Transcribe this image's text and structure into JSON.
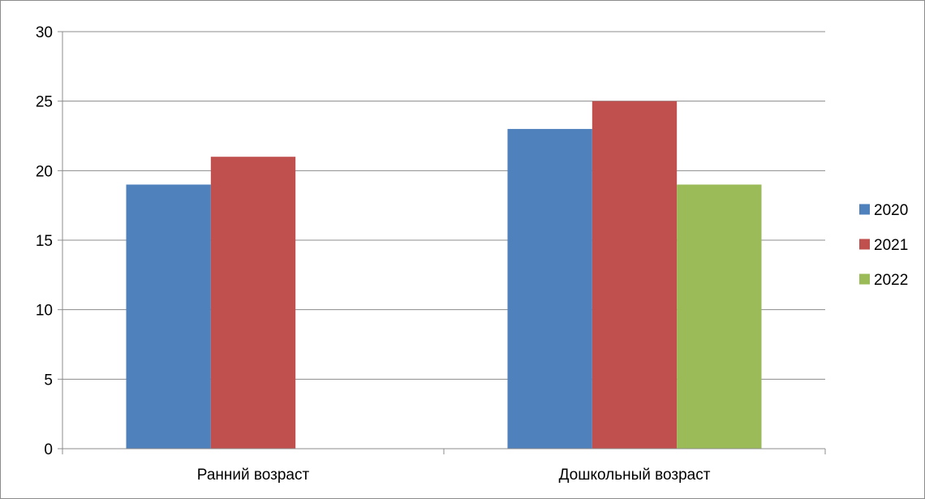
{
  "chart_data": {
    "type": "bar",
    "categories": [
      "Ранний возраст",
      "Дошкольный возраст"
    ],
    "series": [
      {
        "name": "2020",
        "values": [
          19,
          23
        ],
        "color": "#4f81bd"
      },
      {
        "name": "2021",
        "values": [
          21,
          25
        ],
        "color": "#c0504d"
      },
      {
        "name": "2022",
        "values": [
          null,
          19
        ],
        "color": "#9bbb59"
      }
    ],
    "yticks": [
      "0",
      "5",
      "10",
      "15",
      "20",
      "25",
      "30"
    ],
    "ylim": [
      0,
      30
    ],
    "grid": true,
    "legend_position": "right"
  }
}
